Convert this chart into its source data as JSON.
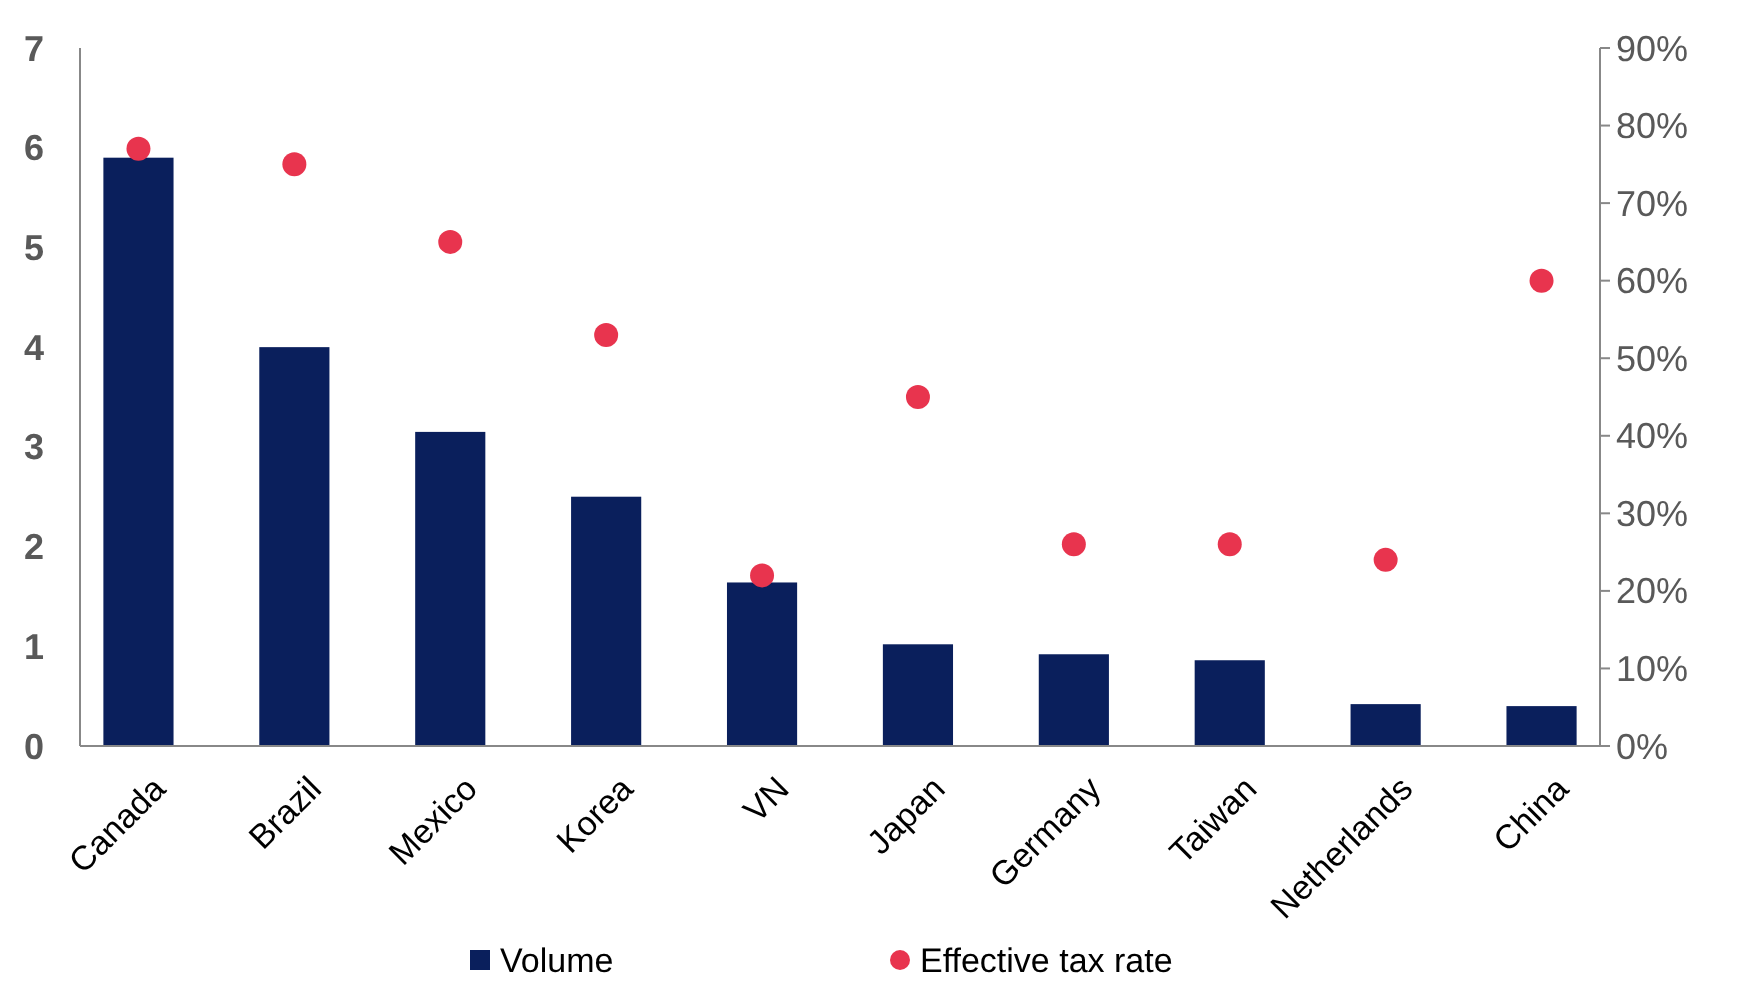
{
  "chart_data": {
    "type": "bar",
    "categories": [
      "Canada",
      "Brazil",
      "Mexico",
      "Korea",
      "VN",
      "Japan",
      "Germany",
      "Taiwan",
      "Netherlands",
      "China"
    ],
    "series": [
      {
        "name": "Volume",
        "color": "#0a1f5c",
        "values": [
          5.9,
          4.0,
          3.15,
          2.5,
          1.64,
          1.02,
          0.92,
          0.86,
          0.42,
          0.4
        ]
      },
      {
        "name": "Effective tax rate",
        "type": "scatter",
        "axis": "y2",
        "color": "#e8344e",
        "marker": "circle",
        "values": [
          77,
          75,
          65,
          53,
          22,
          45,
          26,
          26,
          24,
          60
        ]
      }
    ],
    "ylim": [
      0,
      7
    ],
    "yticks": [
      0,
      1,
      2,
      3,
      4,
      5,
      6,
      7
    ],
    "y2lim": [
      0,
      90
    ],
    "y2ticks": [
      {
        "value": 0,
        "label": "0%"
      },
      {
        "value": 10,
        "label": "10%"
      },
      {
        "value": 20,
        "label": "20%"
      },
      {
        "value": 30,
        "label": "30%"
      },
      {
        "value": 40,
        "label": "40%"
      },
      {
        "value": 50,
        "label": "50%"
      },
      {
        "value": 60,
        "label": "60%"
      },
      {
        "value": 70,
        "label": "70%"
      },
      {
        "value": 80,
        "label": "80%"
      },
      {
        "value": 90,
        "label": "90%"
      }
    ],
    "grid": false,
    "legend": "bottom"
  }
}
